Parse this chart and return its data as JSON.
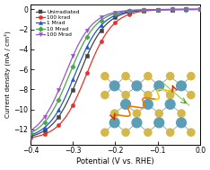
{
  "title": "",
  "xlabel": "Potential (V vs. RHE)",
  "ylabel": "Current density (mA / cm²)",
  "xlim": [
    -0.4,
    0.0
  ],
  "ylim": [
    -13.5,
    0.5
  ],
  "xticks": [
    -0.4,
    -0.3,
    -0.2,
    -0.1,
    0.0
  ],
  "yticks": [
    0,
    -2,
    -4,
    -6,
    -8,
    -10,
    -12
  ],
  "background_color": "#ffffff",
  "series": [
    {
      "label": "Unirradiated",
      "color": "#444444",
      "onset": -0.285,
      "steepness": 32,
      "j_max": -13.0
    },
    {
      "label": "100 krad",
      "color": "#e8302a",
      "onset": -0.268,
      "steepness": 32,
      "j_max": -13.0
    },
    {
      "label": "1 Mrad",
      "color": "#2255cc",
      "onset": -0.295,
      "steepness": 32,
      "j_max": -13.0
    },
    {
      "label": "10 Mrad",
      "color": "#44aa44",
      "onset": -0.308,
      "steepness": 32,
      "j_max": -13.0
    },
    {
      "label": "100 Mrad",
      "color": "#9955cc",
      "onset": -0.318,
      "steepness": 32,
      "j_max": -13.0
    }
  ],
  "inset": {
    "mo_color": "#5b9eb5",
    "s_color": "#d4b84a",
    "bond_color": "#888888",
    "bg_color": "#dce8ee"
  }
}
